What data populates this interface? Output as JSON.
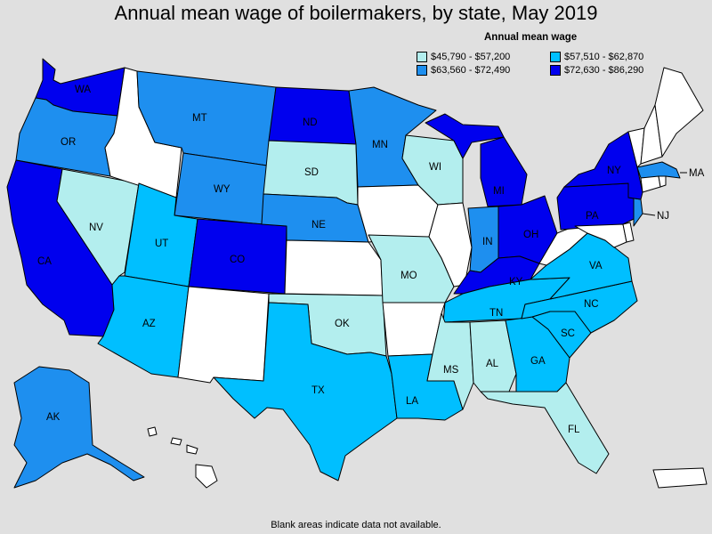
{
  "title": "Annual mean wage of boilermakers, by state, May 2019",
  "legend": {
    "title": "Annual mean wage",
    "bins": [
      {
        "label": "$45,790 - $57,200",
        "color": "#b3eeee"
      },
      {
        "label": "$57,510 - $62,870",
        "color": "#00bfff"
      },
      {
        "label": "$63,560 - $72,490",
        "color": "#1e8fef"
      },
      {
        "label": "$72,630 - $86,290",
        "color": "#0000ee"
      }
    ]
  },
  "colors": {
    "no_data": "#ffffff",
    "background": "#e0e0e0",
    "c1": "#b3eeee",
    "c2": "#00bfff",
    "c3": "#1e8fef",
    "c4": "#0000ee"
  },
  "state_labels": {
    "WA": "WA",
    "OR": "OR",
    "CA": "CA",
    "NV": "NV",
    "MT": "MT",
    "WY": "WY",
    "UT": "UT",
    "CO": "CO",
    "AZ": "AZ",
    "ND": "ND",
    "SD": "SD",
    "NE": "NE",
    "OK": "OK",
    "TX": "TX",
    "MN": "MN",
    "MO": "MO",
    "LA": "LA",
    "WI": "WI",
    "MI": "MI",
    "IN": "IN",
    "OH": "OH",
    "KY": "KY",
    "TN": "TN",
    "MS": "MS",
    "AL": "AL",
    "GA": "GA",
    "FL": "FL",
    "SC": "SC",
    "NC": "NC",
    "VA": "VA",
    "PA": "PA",
    "NY": "NY",
    "NJ": "NJ",
    "MA": "MA",
    "AK": "AK"
  },
  "footnote": "Blank areas indicate data not available."
}
